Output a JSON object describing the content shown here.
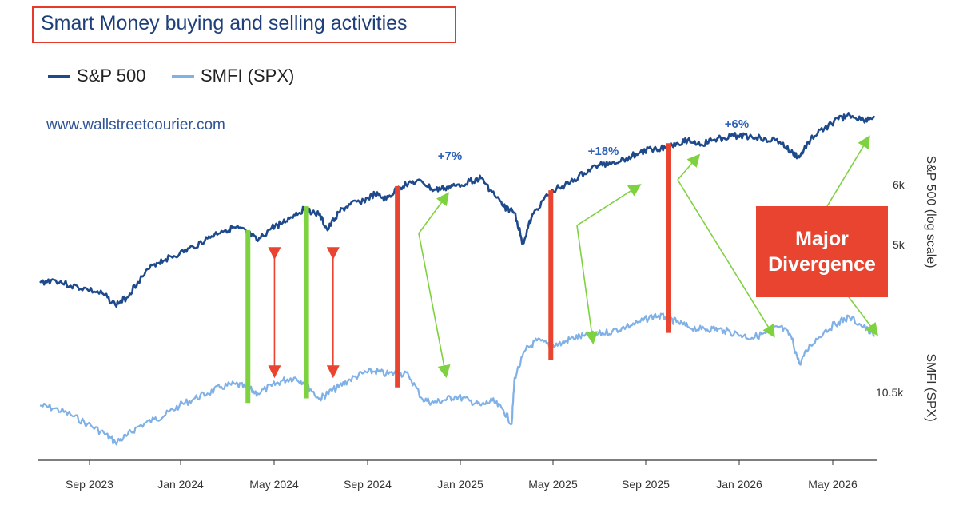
{
  "title": "Smart Money buying and selling activities",
  "watermark": "www.wallstreetcourier.com",
  "callout": {
    "line1": "Major",
    "line2": "Divergence"
  },
  "colors": {
    "sp500": "#1e4a8c",
    "smfi": "#7fb0e6",
    "bullish": "#7ed13f",
    "bearish": "#e8442f",
    "highlight_box": "#e53a2a"
  },
  "chart_data": {
    "type": "line",
    "series": [
      {
        "name": "S&P 500",
        "axis": "right-top",
        "scale": "log"
      },
      {
        "name": "SMFI (SPX)",
        "axis": "right-bottom"
      }
    ],
    "x_ticks": [
      "Sep 2023",
      "Jan 2024",
      "May 2024",
      "Sep 2024",
      "Jan 2025",
      "May 2025",
      "Sep 2025",
      "Jan 2026",
      "May 2026"
    ],
    "x_range": [
      "2023-07",
      "2026-07"
    ],
    "y_right_top": {
      "label": "S&P 500 (log scale)",
      "ticks": [
        "6k",
        "5k"
      ]
    },
    "y_right_bottom": {
      "label": "SMFI (SPX)",
      "ticks": [
        "10.5k"
      ]
    },
    "sp500_path": [
      [
        2023.55,
        4440
      ],
      [
        2023.6,
        4480
      ],
      [
        2023.66,
        4400
      ],
      [
        2023.72,
        4350
      ],
      [
        2023.78,
        4280
      ],
      [
        2023.82,
        4150
      ],
      [
        2023.86,
        4240
      ],
      [
        2023.9,
        4450
      ],
      [
        2023.96,
        4700
      ],
      [
        2024.0,
        4770
      ],
      [
        2024.05,
        4850
      ],
      [
        2024.1,
        4950
      ],
      [
        2024.15,
        5080
      ],
      [
        2024.2,
        5200
      ],
      [
        2024.25,
        5250
      ],
      [
        2024.29,
        5180
      ],
      [
        2024.33,
        5040
      ],
      [
        2024.38,
        5250
      ],
      [
        2024.42,
        5330
      ],
      [
        2024.46,
        5460
      ],
      [
        2024.5,
        5560
      ],
      [
        2024.55,
        5460
      ],
      [
        2024.58,
        5210
      ],
      [
        2024.62,
        5500
      ],
      [
        2024.66,
        5630
      ],
      [
        2024.71,
        5700
      ],
      [
        2024.75,
        5810
      ],
      [
        2024.79,
        5720
      ],
      [
        2024.83,
        5900
      ],
      [
        2024.87,
        6020
      ],
      [
        2024.92,
        6030
      ],
      [
        2024.96,
        5880
      ],
      [
        2025.0,
        5920
      ],
      [
        2025.04,
        5960
      ],
      [
        2025.09,
        6050
      ],
      [
        2025.13,
        6100
      ],
      [
        2025.17,
        5850
      ],
      [
        2025.21,
        5600
      ],
      [
        2025.25,
        5500
      ],
      [
        2025.28,
        5000
      ],
      [
        2025.31,
        5400
      ],
      [
        2025.35,
        5700
      ],
      [
        2025.4,
        5910
      ],
      [
        2025.45,
        6020
      ],
      [
        2025.5,
        6200
      ],
      [
        2025.55,
        6350
      ],
      [
        2025.6,
        6400
      ],
      [
        2025.65,
        6480
      ],
      [
        2025.7,
        6600
      ],
      [
        2025.75,
        6680
      ],
      [
        2025.79,
        6700
      ],
      [
        2025.83,
        6790
      ],
      [
        2025.87,
        6850
      ],
      [
        2025.92,
        6760
      ],
      [
        2025.96,
        6850
      ],
      [
        2026.0,
        6900
      ],
      [
        2026.05,
        6950
      ],
      [
        2026.1,
        6920
      ],
      [
        2026.15,
        6880
      ],
      [
        2026.2,
        6820
      ],
      [
        2026.24,
        6600
      ],
      [
        2026.27,
        6500
      ],
      [
        2026.31,
        6870
      ],
      [
        2026.36,
        7100
      ],
      [
        2026.41,
        7300
      ],
      [
        2026.45,
        7400
      ],
      [
        2026.5,
        7280
      ],
      [
        2026.54,
        7350
      ]
    ],
    "smfi_path": [
      [
        2023.55,
        10350
      ],
      [
        2023.6,
        10320
      ],
      [
        2023.66,
        10250
      ],
      [
        2023.72,
        10150
      ],
      [
        2023.78,
        10050
      ],
      [
        2023.82,
        9950
      ],
      [
        2023.86,
        10020
      ],
      [
        2023.9,
        10120
      ],
      [
        2023.96,
        10200
      ],
      [
        2024.0,
        10250
      ],
      [
        2024.05,
        10350
      ],
      [
        2024.1,
        10420
      ],
      [
        2024.15,
        10480
      ],
      [
        2024.2,
        10550
      ],
      [
        2024.25,
        10580
      ],
      [
        2024.29,
        10540
      ],
      [
        2024.33,
        10480
      ],
      [
        2024.38,
        10560
      ],
      [
        2024.42,
        10620
      ],
      [
        2024.46,
        10650
      ],
      [
        2024.5,
        10600
      ],
      [
        2024.55,
        10420
      ],
      [
        2024.58,
        10480
      ],
      [
        2024.62,
        10550
      ],
      [
        2024.66,
        10630
      ],
      [
        2024.71,
        10700
      ],
      [
        2024.75,
        10720
      ],
      [
        2024.79,
        10690
      ],
      [
        2024.83,
        10700
      ],
      [
        2024.87,
        10680
      ],
      [
        2024.92,
        10420
      ],
      [
        2024.96,
        10380
      ],
      [
        2025.0,
        10410
      ],
      [
        2025.04,
        10450
      ],
      [
        2025.09,
        10400
      ],
      [
        2025.13,
        10350
      ],
      [
        2025.17,
        10400
      ],
      [
        2025.21,
        10300
      ],
      [
        2025.24,
        10150
      ],
      [
        2025.25,
        10650
      ],
      [
        2025.29,
        10950
      ],
      [
        2025.33,
        11050
      ],
      [
        2025.38,
        11000
      ],
      [
        2025.42,
        11020
      ],
      [
        2025.46,
        11080
      ],
      [
        2025.5,
        11100
      ],
      [
        2025.55,
        11120
      ],
      [
        2025.6,
        11150
      ],
      [
        2025.65,
        11200
      ],
      [
        2025.7,
        11250
      ],
      [
        2025.75,
        11320
      ],
      [
        2025.79,
        11300
      ],
      [
        2025.83,
        11250
      ],
      [
        2025.87,
        11200
      ],
      [
        2025.92,
        11170
      ],
      [
        2025.96,
        11180
      ],
      [
        2026.0,
        11160
      ],
      [
        2026.05,
        11120
      ],
      [
        2026.1,
        11080
      ],
      [
        2026.15,
        11130
      ],
      [
        2026.2,
        11200
      ],
      [
        2026.24,
        11100
      ],
      [
        2026.27,
        10800
      ],
      [
        2026.31,
        11000
      ],
      [
        2026.36,
        11150
      ],
      [
        2026.41,
        11250
      ],
      [
        2026.45,
        11300
      ],
      [
        2026.5,
        11200
      ],
      [
        2026.54,
        11100
      ]
    ],
    "divergence_markers": [
      {
        "date": 2024.295,
        "kind": "bullish"
      },
      {
        "date": 2024.505,
        "kind": "bullish"
      },
      {
        "date": 2024.83,
        "kind": "bearish"
      },
      {
        "date": 2025.38,
        "kind": "bearish"
      },
      {
        "date": 2025.8,
        "kind": "bearish"
      }
    ],
    "annotations": [
      {
        "text": "+7%",
        "date": 2024.95
      },
      {
        "text": "+18%",
        "date": 2025.58
      },
      {
        "text": "+6%",
        "date": 2026.0
      }
    ]
  }
}
